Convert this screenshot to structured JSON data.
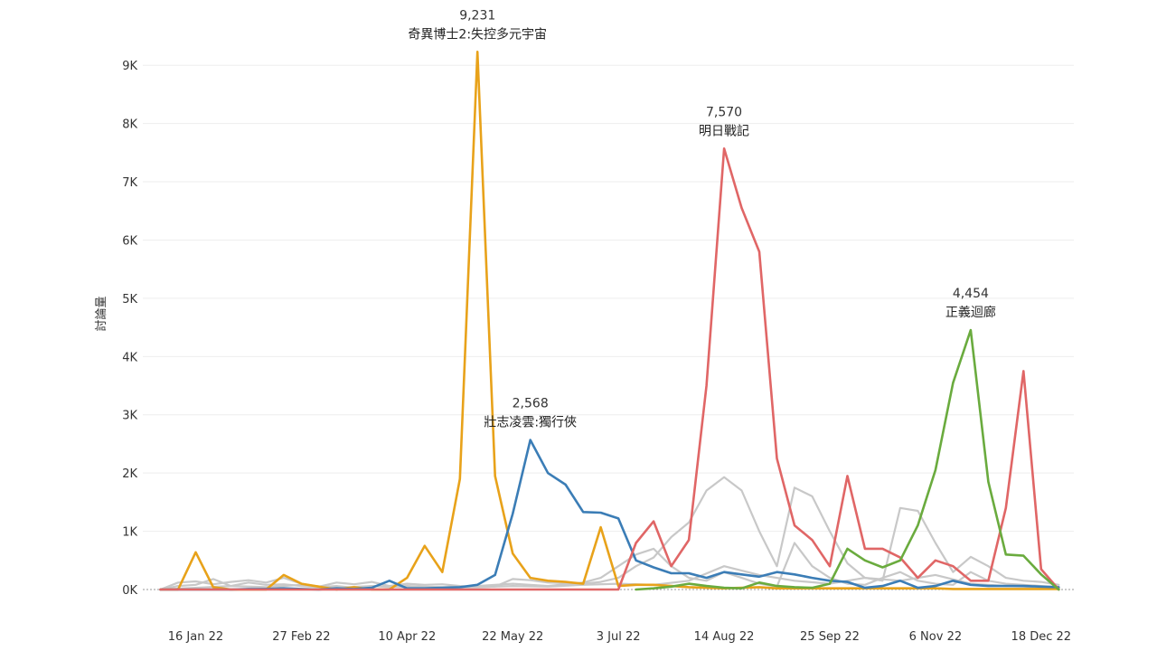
{
  "chart_data": {
    "type": "line",
    "ylabel": "討論量",
    "xlabel": "",
    "ylim": [
      0,
      9500
    ],
    "grid": true,
    "y_ticks": [
      {
        "value": 0,
        "label": "0K"
      },
      {
        "value": 1000,
        "label": "1K"
      },
      {
        "value": 2000,
        "label": "2K"
      },
      {
        "value": 3000,
        "label": "3K"
      },
      {
        "value": 4000,
        "label": "4K"
      },
      {
        "value": 5000,
        "label": "5K"
      },
      {
        "value": 6000,
        "label": "6K"
      },
      {
        "value": 7000,
        "label": "7K"
      },
      {
        "value": 8000,
        "label": "8K"
      },
      {
        "value": 9000,
        "label": "9K"
      }
    ],
    "x_ticks": [
      {
        "date": "2022-01-16",
        "label": "16 Jan 22"
      },
      {
        "date": "2022-02-27",
        "label": "27 Feb 22"
      },
      {
        "date": "2022-04-10",
        "label": "10 Apr 22"
      },
      {
        "date": "2022-05-22",
        "label": "22 May 22"
      },
      {
        "date": "2022-07-03",
        "label": "3 Jul 22"
      },
      {
        "date": "2022-08-14",
        "label": "14 Aug 22"
      },
      {
        "date": "2022-09-25",
        "label": "25 Sep 22"
      },
      {
        "date": "2022-11-06",
        "label": "6 Nov 22"
      },
      {
        "date": "2022-12-18",
        "label": "18 Dec 22"
      }
    ],
    "series": [
      {
        "color": "#c8c8c8",
        "x": [
          "2022-01-02",
          "2022-01-09",
          "2022-01-16",
          "2022-01-23",
          "2022-01-30",
          "2022-02-06",
          "2022-02-13",
          "2022-02-20",
          "2022-02-27",
          "2022-03-06",
          "2022-03-13",
          "2022-03-20",
          "2022-03-27",
          "2022-04-03",
          "2022-04-10",
          "2022-04-17",
          "2022-04-24",
          "2022-05-01",
          "2022-05-08",
          "2022-05-15",
          "2022-05-22",
          "2022-05-29",
          "2022-06-05",
          "2022-06-12",
          "2022-06-19",
          "2022-06-26",
          "2022-07-03",
          "2022-07-10",
          "2022-07-17",
          "2022-07-24",
          "2022-07-31",
          "2022-08-07",
          "2022-08-14",
          "2022-08-21",
          "2022-08-28",
          "2022-09-04",
          "2022-09-11",
          "2022-09-18",
          "2022-09-25",
          "2022-10-02",
          "2022-10-09",
          "2022-10-16",
          "2022-10-23",
          "2022-10-30",
          "2022-11-06",
          "2022-11-13",
          "2022-11-20",
          "2022-11-27",
          "2022-12-04",
          "2022-12-11",
          "2022-12-18",
          "2022-12-25"
        ],
        "values": [
          0,
          120,
          140,
          90,
          130,
          160,
          120,
          200,
          100,
          50,
          120,
          90,
          130,
          60,
          100,
          80,
          90,
          60,
          40,
          50,
          180,
          160,
          120,
          110,
          100,
          130,
          200,
          400,
          550,
          900,
          1150,
          1700,
          1930,
          1700,
          1000,
          400,
          1750,
          1600,
          1000,
          450,
          200,
          150,
          1400,
          1350,
          800,
          300,
          560,
          400,
          200,
          150,
          130,
          80
        ]
      },
      {
        "color": "#c8c8c8",
        "x": [
          "2022-01-02",
          "2022-01-09",
          "2022-01-16",
          "2022-01-23",
          "2022-01-30",
          "2022-02-06",
          "2022-02-13",
          "2022-02-20",
          "2022-02-27",
          "2022-03-06",
          "2022-03-13",
          "2022-03-20",
          "2022-03-27",
          "2022-04-03",
          "2022-04-10",
          "2022-04-17",
          "2022-04-24",
          "2022-05-01",
          "2022-05-08",
          "2022-05-15",
          "2022-05-22",
          "2022-05-29",
          "2022-06-05",
          "2022-06-12",
          "2022-06-19",
          "2022-06-26",
          "2022-07-03",
          "2022-07-10",
          "2022-07-17",
          "2022-07-24",
          "2022-07-31",
          "2022-08-07",
          "2022-08-14",
          "2022-08-21",
          "2022-08-28",
          "2022-09-04",
          "2022-09-11",
          "2022-09-18",
          "2022-09-25",
          "2022-10-02",
          "2022-10-09",
          "2022-10-16",
          "2022-10-23",
          "2022-10-30",
          "2022-11-06",
          "2022-11-13",
          "2022-11-20",
          "2022-11-27",
          "2022-12-04",
          "2022-12-11",
          "2022-12-18",
          "2022-12-25"
        ],
        "values": [
          0,
          60,
          80,
          180,
          60,
          120,
          80,
          90,
          60,
          40,
          60,
          30,
          60,
          40,
          60,
          50,
          40,
          50,
          60,
          80,
          100,
          80,
          60,
          90,
          120,
          200,
          400,
          600,
          700,
          400,
          200,
          150,
          300,
          200,
          100,
          50,
          800,
          400,
          200,
          100,
          80,
          200,
          300,
          150,
          100,
          80,
          300,
          150,
          100,
          80,
          60,
          40
        ]
      },
      {
        "color": "#c8c8c8",
        "x": [
          "2022-01-02",
          "2022-01-16",
          "2022-01-30",
          "2022-02-13",
          "2022-02-27",
          "2022-03-13",
          "2022-03-27",
          "2022-04-10",
          "2022-04-24",
          "2022-05-08",
          "2022-05-22",
          "2022-06-05",
          "2022-06-19",
          "2022-07-03",
          "2022-07-17",
          "2022-07-31",
          "2022-08-14",
          "2022-08-28",
          "2022-09-11",
          "2022-09-25",
          "2022-10-09",
          "2022-10-23",
          "2022-11-06",
          "2022-11-20",
          "2022-12-04",
          "2022-12-18",
          "2022-12-25"
        ],
        "values": [
          0,
          30,
          60,
          40,
          80,
          30,
          60,
          40,
          30,
          40,
          60,
          50,
          80,
          100,
          80,
          150,
          400,
          250,
          150,
          100,
          200,
          150,
          250,
          100,
          60,
          40,
          30
        ]
      },
      {
        "color": "#e8a21a",
        "x": [
          "2022-01-02",
          "2022-01-09",
          "2022-01-16",
          "2022-01-23",
          "2022-01-30",
          "2022-02-06",
          "2022-02-13",
          "2022-02-20",
          "2022-02-27",
          "2022-03-06",
          "2022-03-13",
          "2022-03-20",
          "2022-03-27",
          "2022-04-03",
          "2022-04-10",
          "2022-04-17",
          "2022-04-24",
          "2022-05-01",
          "2022-05-08",
          "2022-05-15",
          "2022-05-22",
          "2022-05-29",
          "2022-06-05",
          "2022-06-12",
          "2022-06-19",
          "2022-06-26",
          "2022-07-03",
          "2022-07-10",
          "2022-07-17",
          "2022-07-24",
          "2022-07-31",
          "2022-08-07",
          "2022-08-14",
          "2022-08-21",
          "2022-08-28",
          "2022-09-04",
          "2022-09-11",
          "2022-09-18",
          "2022-09-25",
          "2022-10-02",
          "2022-10-09",
          "2022-10-16",
          "2022-10-23",
          "2022-10-30",
          "2022-11-06",
          "2022-11-13",
          "2022-11-20",
          "2022-11-27",
          "2022-12-04",
          "2022-12-11",
          "2022-12-18",
          "2022-12-25"
        ],
        "values": [
          0,
          0,
          640,
          40,
          0,
          0,
          0,
          250,
          100,
          50,
          0,
          40,
          0,
          0,
          200,
          750,
          300,
          1900,
          9231,
          1950,
          620,
          200,
          150,
          130,
          100,
          1070,
          60,
          80,
          80,
          60,
          40,
          30,
          20,
          30,
          40,
          20,
          20,
          20,
          20,
          20,
          20,
          20,
          20,
          20,
          20,
          10,
          10,
          10,
          10,
          10,
          10,
          10
        ]
      },
      {
        "color": "#3b7db6",
        "x": [
          "2022-01-02",
          "2022-01-09",
          "2022-01-16",
          "2022-01-23",
          "2022-01-30",
          "2022-02-06",
          "2022-02-13",
          "2022-02-20",
          "2022-02-27",
          "2022-03-06",
          "2022-03-13",
          "2022-03-20",
          "2022-03-27",
          "2022-04-03",
          "2022-04-10",
          "2022-04-17",
          "2022-04-24",
          "2022-05-01",
          "2022-05-08",
          "2022-05-15",
          "2022-05-22",
          "2022-05-29",
          "2022-06-05",
          "2022-06-12",
          "2022-06-19",
          "2022-06-26",
          "2022-07-03",
          "2022-07-10",
          "2022-07-17",
          "2022-07-24",
          "2022-07-31",
          "2022-08-07",
          "2022-08-14",
          "2022-08-21",
          "2022-08-28",
          "2022-09-04",
          "2022-09-11",
          "2022-09-18",
          "2022-09-25",
          "2022-10-02",
          "2022-10-09",
          "2022-10-16",
          "2022-10-23",
          "2022-10-30",
          "2022-11-06",
          "2022-11-13",
          "2022-11-20",
          "2022-11-27",
          "2022-12-04",
          "2022-12-11",
          "2022-12-18",
          "2022-12-25"
        ],
        "values": [
          0,
          0,
          0,
          0,
          0,
          10,
          10,
          20,
          10,
          0,
          20,
          10,
          30,
          150,
          20,
          20,
          30,
          40,
          80,
          250,
          1300,
          2568,
          2000,
          1800,
          1330,
          1320,
          1220,
          500,
          380,
          280,
          280,
          200,
          300,
          260,
          220,
          300,
          260,
          200,
          150,
          130,
          30,
          60,
          150,
          30,
          60,
          150,
          80,
          60,
          60,
          60,
          50,
          40
        ]
      },
      {
        "color": "#e06666",
        "x": [
          "2022-01-02",
          "2022-01-09",
          "2022-01-16",
          "2022-01-23",
          "2022-01-30",
          "2022-02-06",
          "2022-02-13",
          "2022-02-20",
          "2022-02-27",
          "2022-03-06",
          "2022-03-13",
          "2022-03-20",
          "2022-03-27",
          "2022-04-03",
          "2022-04-10",
          "2022-04-17",
          "2022-04-24",
          "2022-05-01",
          "2022-05-08",
          "2022-05-15",
          "2022-05-22",
          "2022-05-29",
          "2022-06-05",
          "2022-06-12",
          "2022-06-19",
          "2022-06-26",
          "2022-07-03",
          "2022-07-10",
          "2022-07-17",
          "2022-07-24",
          "2022-07-31",
          "2022-08-07",
          "2022-08-14",
          "2022-08-21",
          "2022-08-28",
          "2022-09-04",
          "2022-09-11",
          "2022-09-18",
          "2022-09-25",
          "2022-10-02",
          "2022-10-09",
          "2022-10-16",
          "2022-10-23",
          "2022-10-30",
          "2022-11-06",
          "2022-11-13",
          "2022-11-20",
          "2022-11-27",
          "2022-12-04",
          "2022-12-11",
          "2022-12-18",
          "2022-12-25"
        ],
        "values": [
          0,
          0,
          0,
          0,
          0,
          0,
          0,
          0,
          0,
          0,
          0,
          0,
          0,
          0,
          0,
          0,
          0,
          0,
          0,
          0,
          0,
          0,
          0,
          0,
          0,
          0,
          0,
          800,
          1170,
          400,
          850,
          3500,
          7570,
          6550,
          5800,
          2250,
          1100,
          850,
          400,
          1950,
          700,
          700,
          550,
          200,
          500,
          400,
          150,
          150,
          1400,
          3750,
          350,
          0
        ]
      },
      {
        "color": "#6aab3e",
        "x": [
          "2022-07-10",
          "2022-07-17",
          "2022-07-24",
          "2022-07-31",
          "2022-08-07",
          "2022-08-14",
          "2022-08-21",
          "2022-08-28",
          "2022-09-04",
          "2022-09-11",
          "2022-09-18",
          "2022-09-25",
          "2022-10-02",
          "2022-10-09",
          "2022-10-16",
          "2022-10-23",
          "2022-10-30",
          "2022-11-06",
          "2022-11-13",
          "2022-11-20",
          "2022-11-27",
          "2022-12-04",
          "2022-12-11",
          "2022-12-18",
          "2022-12-25"
        ],
        "values": [
          0,
          20,
          50,
          100,
          60,
          30,
          20,
          120,
          60,
          40,
          30,
          100,
          700,
          500,
          380,
          500,
          1100,
          2050,
          3550,
          4454,
          1850,
          600,
          580,
          260,
          0
        ]
      }
    ],
    "annotations": [
      {
        "x": "2022-05-08",
        "y": 9231,
        "value_label": "9,231",
        "name": "奇異博士2:失控多元宇宙"
      },
      {
        "x": "2022-05-29",
        "y": 2568,
        "value_label": "2,568",
        "name": "壯志凌雲:獨行俠"
      },
      {
        "x": "2022-08-14",
        "y": 7570,
        "value_label": "7,570",
        "name": "明日戰記"
      },
      {
        "x": "2022-11-20",
        "y": 4454,
        "value_label": "4,454",
        "name": "正義迴廊"
      }
    ]
  }
}
